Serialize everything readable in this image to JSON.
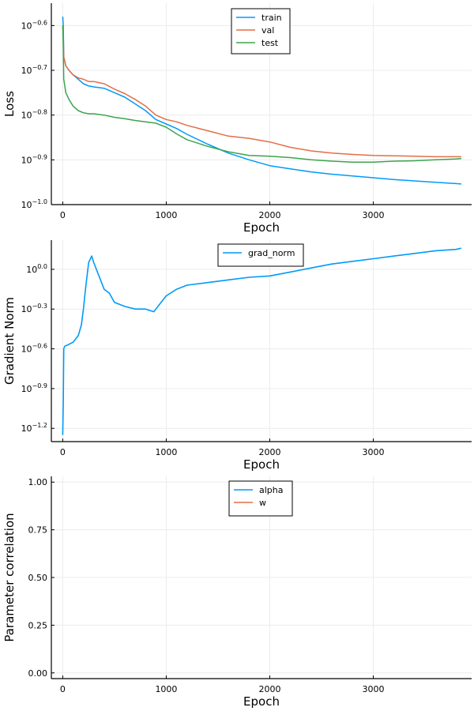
{
  "chart_data": [
    {
      "type": "line",
      "xlabel": "Epoch",
      "ylabel": "Loss",
      "yscale": "log10",
      "xlim": [
        -110,
        3950
      ],
      "ylim_log10": [
        -1.0,
        -0.55
      ],
      "xticks": [
        0,
        1000,
        2000,
        3000
      ],
      "xtick_labels": [
        "0",
        "1000",
        "2000",
        "3000"
      ],
      "yticks_log10": [
        -1.0,
        -0.9,
        -0.8,
        -0.7,
        -0.6
      ],
      "ytick_labels": [
        {
          "base": "10",
          "exp": "−1.0"
        },
        {
          "base": "10",
          "exp": "−0.9"
        },
        {
          "base": "10",
          "exp": "−0.8"
        },
        {
          "base": "10",
          "exp": "−0.7"
        },
        {
          "base": "10",
          "exp": "−0.6"
        }
      ],
      "grid": true,
      "legend": "top-center",
      "series": [
        {
          "name": "train",
          "color": "#009af9",
          "x": [
            0,
            5,
            10,
            30,
            60,
            100,
            150,
            200,
            250,
            300,
            400,
            500,
            600,
            700,
            800,
            900,
            1000,
            1100,
            1200,
            1400,
            1600,
            1800,
            2000,
            2200,
            2400,
            2600,
            2800,
            3000,
            3200,
            3400,
            3600,
            3800,
            3850
          ],
          "log10y": [
            -0.58,
            -0.6,
            -0.67,
            -0.69,
            -0.7,
            -0.71,
            -0.72,
            -0.73,
            -0.735,
            -0.737,
            -0.74,
            -0.75,
            -0.76,
            -0.775,
            -0.79,
            -0.81,
            -0.82,
            -0.83,
            -0.843,
            -0.865,
            -0.885,
            -0.9,
            -0.913,
            -0.92,
            -0.927,
            -0.932,
            -0.936,
            -0.94,
            -0.944,
            -0.947,
            -0.95,
            -0.953,
            -0.954
          ]
        },
        {
          "name": "val",
          "color": "#e26f46",
          "x": [
            0,
            5,
            10,
            30,
            60,
            100,
            150,
            200,
            250,
            300,
            400,
            500,
            600,
            700,
            800,
            900,
            1000,
            1100,
            1200,
            1400,
            1600,
            1800,
            2000,
            2200,
            2400,
            2600,
            2800,
            3000,
            3200,
            3400,
            3600,
            3800,
            3850
          ],
          "log10y": [
            -0.6,
            -0.62,
            -0.67,
            -0.69,
            -0.7,
            -0.71,
            -0.717,
            -0.72,
            -0.725,
            -0.725,
            -0.73,
            -0.742,
            -0.752,
            -0.765,
            -0.78,
            -0.8,
            -0.81,
            -0.815,
            -0.823,
            -0.835,
            -0.847,
            -0.852,
            -0.86,
            -0.872,
            -0.88,
            -0.885,
            -0.888,
            -0.89,
            -0.891,
            -0.892,
            -0.893,
            -0.893,
            -0.893
          ]
        },
        {
          "name": "test",
          "color": "#3da44d",
          "x": [
            0,
            5,
            10,
            30,
            60,
            100,
            150,
            200,
            250,
            300,
            400,
            500,
            600,
            700,
            800,
            900,
            1000,
            1100,
            1200,
            1400,
            1600,
            1800,
            2000,
            2200,
            2400,
            2600,
            2800,
            3000,
            3200,
            3400,
            3600,
            3800,
            3850
          ],
          "log10y": [
            -0.6,
            -0.65,
            -0.72,
            -0.75,
            -0.765,
            -0.78,
            -0.79,
            -0.795,
            -0.797,
            -0.797,
            -0.8,
            -0.805,
            -0.808,
            -0.812,
            -0.815,
            -0.818,
            -0.827,
            -0.842,
            -0.855,
            -0.87,
            -0.882,
            -0.89,
            -0.892,
            -0.895,
            -0.9,
            -0.903,
            -0.905,
            -0.905,
            -0.903,
            -0.902,
            -0.9,
            -0.898,
            -0.897
          ]
        }
      ]
    },
    {
      "type": "line",
      "xlabel": "Epoch",
      "ylabel": "Gradient Norm",
      "yscale": "log10",
      "xlim": [
        -110,
        3950
      ],
      "ylim_log10": [
        -1.3,
        0.22
      ],
      "xticks": [
        0,
        1000,
        2000,
        3000
      ],
      "xtick_labels": [
        "0",
        "1000",
        "2000",
        "3000"
      ],
      "yticks_log10": [
        -1.2,
        -0.9,
        -0.6,
        -0.3,
        0.0
      ],
      "ytick_labels": [
        {
          "base": "10",
          "exp": "−1.2"
        },
        {
          "base": "10",
          "exp": "−0.9"
        },
        {
          "base": "10",
          "exp": "−0.6"
        },
        {
          "base": "10",
          "exp": "−0.3"
        },
        {
          "base": "10",
          "exp": "0.0"
        }
      ],
      "grid": true,
      "legend": "top-center",
      "series": [
        {
          "name": "grad_norm",
          "color": "#009af9",
          "x": [
            0,
            5,
            10,
            20,
            50,
            100,
            150,
            180,
            200,
            220,
            250,
            280,
            300,
            350,
            400,
            450,
            500,
            600,
            700,
            800,
            880,
            900,
            1000,
            1100,
            1200,
            1400,
            1600,
            1800,
            2000,
            2200,
            2400,
            2600,
            2800,
            3000,
            3200,
            3400,
            3600,
            3800,
            3850
          ],
          "log10y": [
            -1.25,
            -1.0,
            -0.6,
            -0.58,
            -0.57,
            -0.55,
            -0.5,
            -0.42,
            -0.3,
            -0.15,
            0.05,
            0.1,
            0.05,
            -0.05,
            -0.15,
            -0.18,
            -0.25,
            -0.28,
            -0.3,
            -0.3,
            -0.32,
            -0.3,
            -0.2,
            -0.15,
            -0.12,
            -0.1,
            -0.08,
            -0.06,
            -0.05,
            -0.02,
            0.01,
            0.04,
            0.06,
            0.08,
            0.1,
            0.12,
            0.14,
            0.15,
            0.16
          ]
        }
      ]
    },
    {
      "type": "line",
      "xlabel": "Epoch",
      "ylabel": "Parameter correlation",
      "yscale": "linear",
      "xlim": [
        -110,
        3950
      ],
      "ylim": [
        -0.03,
        1.03
      ],
      "xticks": [
        0,
        1000,
        2000,
        3000
      ],
      "xtick_labels": [
        "0",
        "1000",
        "2000",
        "3000"
      ],
      "yticks": [
        0.0,
        0.25,
        0.5,
        0.75,
        1.0
      ],
      "ytick_labels": [
        "0.00",
        "0.25",
        "0.50",
        "0.75",
        "1.00"
      ],
      "grid": true,
      "legend": "top-center",
      "series": [
        {
          "name": "alpha",
          "color": "#009af9",
          "x": [],
          "y": []
        },
        {
          "name": "w",
          "color": "#e26f46",
          "x": [],
          "y": []
        }
      ]
    }
  ]
}
